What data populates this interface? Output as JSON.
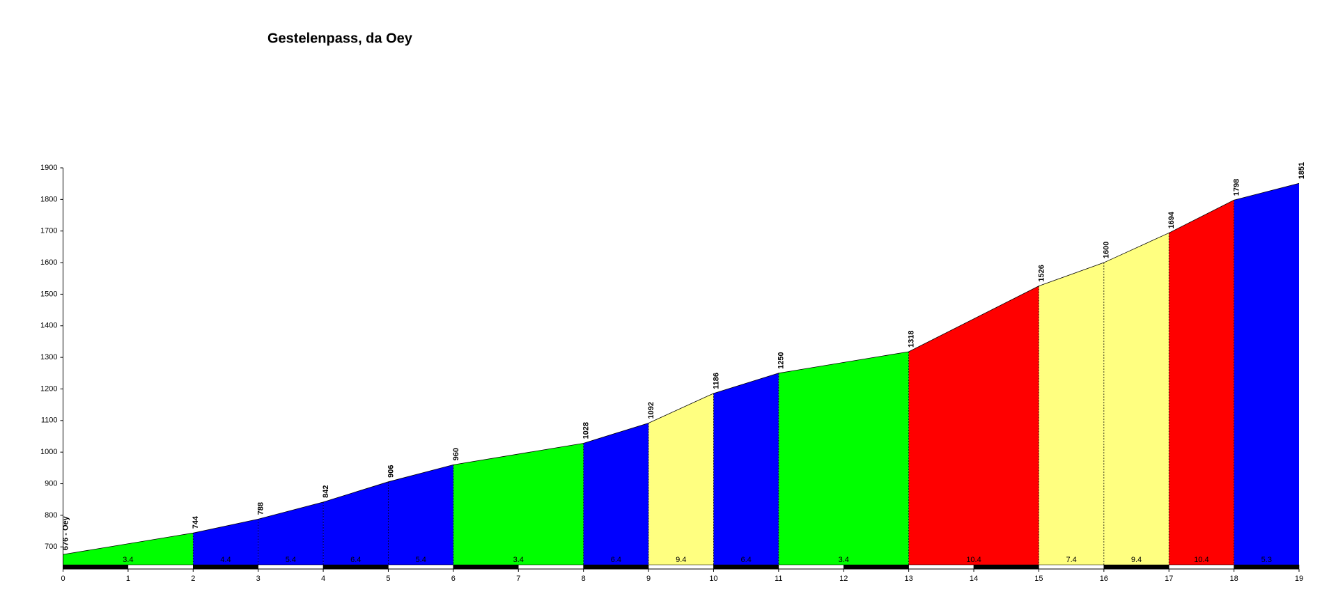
{
  "chart_data": {
    "type": "area",
    "title": "Gestelenpass, da Oey",
    "x": [
      0,
      2,
      3,
      4,
      5,
      6,
      8,
      9,
      10,
      11,
      13,
      15,
      16,
      17,
      18,
      19
    ],
    "values": [
      676,
      744,
      788,
      842,
      906,
      960,
      1028,
      1092,
      1186,
      1250,
      1318,
      1526,
      1600,
      1694,
      1798,
      1851
    ],
    "value_labels": [
      "676 - Oey",
      "744",
      "788",
      "842",
      "906",
      "960",
      "1028",
      "1092",
      "1186",
      "1250",
      "1318",
      "1526",
      "1600",
      "1694",
      "1798",
      "1851"
    ],
    "segments": [
      {
        "gradient": 3.4,
        "color": "#00ff00"
      },
      {
        "gradient": 4.4,
        "color": "#0000ff"
      },
      {
        "gradient": 5.4,
        "color": "#0000ff"
      },
      {
        "gradient": 6.4,
        "color": "#0000ff"
      },
      {
        "gradient": 5.4,
        "color": "#0000ff"
      },
      {
        "gradient": 3.4,
        "color": "#00ff00"
      },
      {
        "gradient": 6.4,
        "color": "#0000ff"
      },
      {
        "gradient": 9.4,
        "color": "#ffff80"
      },
      {
        "gradient": 6.4,
        "color": "#0000ff"
      },
      {
        "gradient": 3.4,
        "color": "#00ff00"
      },
      {
        "gradient": 10.4,
        "color": "#ff0000"
      },
      {
        "gradient": 7.4,
        "color": "#ffff80"
      },
      {
        "gradient": 9.4,
        "color": "#ffff80"
      },
      {
        "gradient": 10.4,
        "color": "#ff0000"
      },
      {
        "gradient": 5.3,
        "color": "#0000ff"
      }
    ],
    "xlim": [
      0,
      19
    ],
    "xticks": [
      0,
      1,
      2,
      3,
      4,
      5,
      6,
      7,
      8,
      9,
      10,
      11,
      12,
      13,
      14,
      15,
      16,
      17,
      18,
      19
    ],
    "ylim": [
      630,
      1900
    ],
    "yticks": [
      700,
      800,
      900,
      1000,
      1100,
      1200,
      1300,
      1400,
      1500,
      1600,
      1700,
      1800,
      1900
    ]
  }
}
